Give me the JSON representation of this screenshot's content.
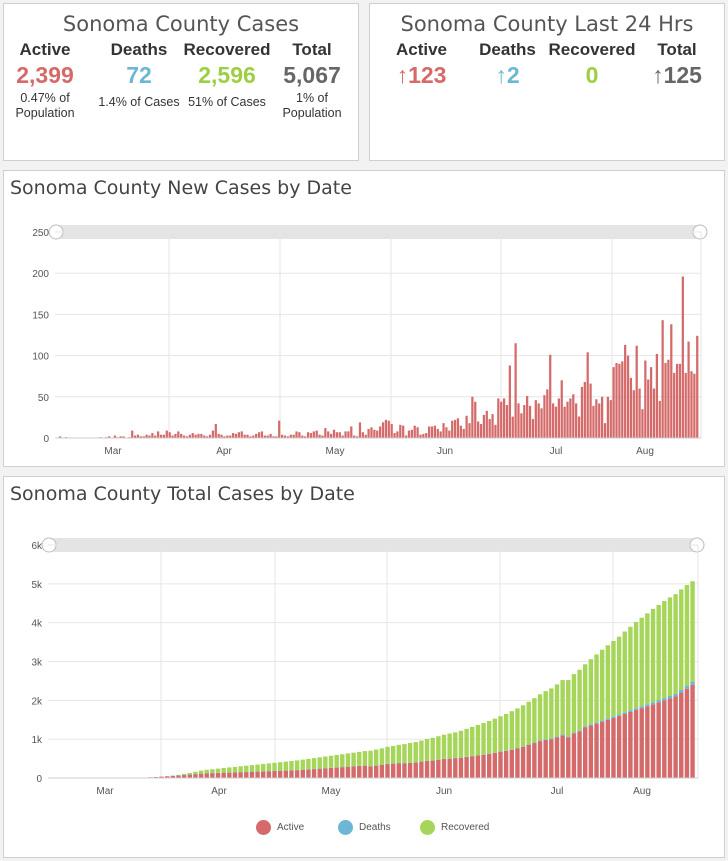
{
  "summary": {
    "title": "Sonoma County Cases",
    "active": {
      "label": "Active",
      "value": "2,399",
      "note": "0.47% of Population"
    },
    "deaths": {
      "label": "Deaths",
      "value": "72",
      "note": "1.4% of Cases"
    },
    "recovered": {
      "label": "Recovered",
      "value": "2,596",
      "note": "51% of Cases"
    },
    "total": {
      "label": "Total",
      "value": "5,067",
      "note": "1% of Population"
    }
  },
  "last24": {
    "title": "Sonoma County Last 24 Hrs",
    "active": {
      "label": "Active",
      "value": "↑123"
    },
    "deaths": {
      "label": "Deaths",
      "value": "↑2"
    },
    "recovered": {
      "label": "Recovered",
      "value": "0"
    },
    "total": {
      "label": "Total",
      "value": "↑125"
    }
  },
  "colors": {
    "active": "#d46a6a",
    "deaths": "#6cb7d6",
    "recovered": "#a5d65a",
    "grid": "#e6e6e6"
  },
  "chart_data": [
    {
      "type": "bar",
      "title": "Sonoma County New Cases by Date",
      "xlabel": "",
      "ylabel": "",
      "ylim": [
        0,
        250
      ],
      "yticks": [
        "0",
        "50",
        "100",
        "150",
        "200",
        "250"
      ],
      "month_labels": [
        "Mar",
        "Apr",
        "May",
        "Jun",
        "Jul",
        "Aug"
      ],
      "grid": true,
      "series": [
        {
          "values": [
            2,
            0,
            1,
            0,
            0,
            0,
            0,
            0,
            0,
            0,
            0,
            0,
            0,
            0,
            1,
            0,
            1,
            2,
            0,
            3,
            1,
            2,
            2,
            0,
            1,
            9,
            3,
            4,
            2,
            2,
            4,
            3,
            6,
            3,
            8,
            4,
            4,
            9,
            7,
            3,
            5,
            8,
            5,
            3,
            2,
            4,
            6,
            4,
            5,
            5,
            3,
            2,
            4,
            9,
            17,
            5,
            4,
            2,
            3,
            3,
            6,
            5,
            7,
            8,
            4,
            4,
            2,
            3,
            5,
            7,
            8,
            3,
            3,
            5,
            2,
            2,
            21,
            4,
            3,
            2,
            4,
            4,
            8,
            7,
            3,
            2,
            7,
            6,
            8,
            9,
            4,
            3,
            12,
            8,
            5,
            10,
            7,
            7,
            3,
            8,
            8,
            14,
            3,
            2,
            19,
            7,
            4,
            11,
            13,
            10,
            9,
            14,
            19,
            22,
            21,
            17,
            6,
            8,
            16,
            15,
            3,
            9,
            10,
            15,
            13,
            4,
            5,
            6,
            14,
            14,
            15,
            11,
            8,
            18,
            13,
            9,
            21,
            22,
            24,
            15,
            11,
            27,
            18,
            50,
            44,
            20,
            17,
            28,
            33,
            23,
            29,
            16,
            48,
            44,
            48,
            40,
            88,
            26,
            115,
            42,
            30,
            40,
            51,
            39,
            23,
            46,
            42,
            36,
            52,
            59,
            101,
            42,
            38,
            48,
            70,
            38,
            44,
            48,
            53,
            42,
            26,
            62,
            68,
            104,
            66,
            39,
            47,
            42,
            50,
            18,
            50,
            46,
            86,
            91,
            90,
            93,
            113,
            100,
            73,
            58,
            112,
            60,
            35,
            94,
            71,
            86,
            60,
            102,
            45,
            143,
            91,
            95,
            138,
            79,
            90,
            90,
            196,
            79,
            117,
            81,
            78,
            124
          ]
        }
      ]
    },
    {
      "type": "bar",
      "title": "Sonoma County Total Cases by Date",
      "xlabel": "",
      "ylabel": "",
      "ylim": [
        0,
        6000
      ],
      "yticks": [
        "0",
        "1k",
        "2k",
        "3k",
        "4k",
        "5k",
        "6k"
      ],
      "month_labels": [
        "Mar",
        "Apr",
        "May",
        "Jun",
        "Jul",
        "Aug"
      ],
      "grid": true,
      "stacked": true,
      "legend_position": "bottom",
      "series": [
        {
          "name": "Active",
          "values": [
            0,
            0,
            0,
            0,
            0,
            0,
            0,
            0,
            0,
            0,
            0,
            0,
            0,
            0,
            2,
            5,
            10,
            18,
            25,
            35,
            45,
            55,
            65,
            75,
            90,
            100,
            110,
            120,
            125,
            130,
            135,
            140,
            145,
            150,
            155,
            160,
            165,
            170,
            175,
            180,
            185,
            190,
            195,
            200,
            210,
            220,
            230,
            240,
            250,
            260,
            270,
            280,
            290,
            300,
            310,
            320,
            300,
            320,
            340,
            360,
            370,
            380,
            380,
            390,
            400,
            420,
            440,
            450,
            470,
            490,
            500,
            510,
            520,
            540,
            560,
            580,
            600,
            620,
            650,
            680,
            700,
            730,
            760,
            800,
            850,
            900,
            950,
            980,
            1000,
            1050,
            1100,
            1050,
            1150,
            1200,
            1300,
            1350,
            1400,
            1450,
            1500,
            1550,
            1600,
            1650,
            1700,
            1750,
            1800,
            1850,
            1900,
            1950,
            2000,
            2050,
            2100,
            2200,
            2300,
            2400
          ]
        },
        {
          "name": "Deaths",
          "values": [
            0,
            0,
            0,
            0,
            0,
            0,
            0,
            0,
            0,
            0,
            0,
            0,
            0,
            0,
            0,
            0,
            0,
            0,
            0,
            0,
            0,
            1,
            1,
            1,
            1,
            1,
            1,
            2,
            2,
            2,
            2,
            2,
            2,
            2,
            2,
            2,
            2,
            2,
            2,
            2,
            2,
            2,
            2,
            3,
            3,
            3,
            3,
            3,
            3,
            3,
            3,
            3,
            3,
            3,
            3,
            3,
            3,
            3,
            3,
            3,
            4,
            4,
            4,
            4,
            4,
            4,
            5,
            5,
            5,
            5,
            5,
            5,
            6,
            6,
            7,
            7,
            8,
            8,
            9,
            10,
            10,
            11,
            12,
            13,
            14,
            15,
            16,
            17,
            18,
            20,
            22,
            24,
            25,
            27,
            29,
            30,
            32,
            34,
            36,
            38,
            40,
            42,
            44,
            46,
            48,
            50,
            53,
            56,
            58,
            61,
            64,
            66,
            69,
            72
          ]
        },
        {
          "name": "Recovered",
          "values": [
            0,
            0,
            0,
            0,
            0,
            0,
            0,
            0,
            0,
            0,
            0,
            0,
            0,
            0,
            0,
            0,
            0,
            0,
            0,
            0,
            0,
            5,
            15,
            30,
            40,
            60,
            80,
            90,
            100,
            110,
            120,
            130,
            140,
            150,
            160,
            170,
            180,
            190,
            200,
            210,
            220,
            230,
            240,
            250,
            260,
            270,
            280,
            290,
            300,
            310,
            320,
            330,
            340,
            350,
            360,
            370,
            400,
            410,
            420,
            440,
            450,
            470,
            490,
            510,
            520,
            540,
            560,
            580,
            600,
            620,
            640,
            660,
            690,
            720,
            750,
            780,
            810,
            840,
            870,
            900,
            940,
            980,
            1020,
            1060,
            1100,
            1140,
            1190,
            1240,
            1290,
            1340,
            1400,
            1450,
            1500,
            1560,
            1600,
            1680,
            1750,
            1820,
            1880,
            1940,
            2000,
            2080,
            2150,
            2220,
            2280,
            2340,
            2400,
            2450,
            2500,
            2540,
            2570,
            2590,
            2600,
            2596
          ]
        }
      ]
    }
  ]
}
